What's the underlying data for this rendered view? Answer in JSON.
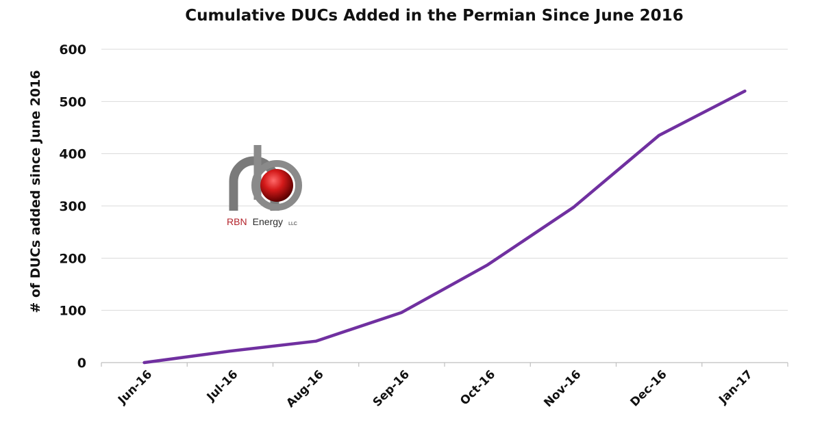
{
  "chart_data": {
    "type": "line",
    "title": "Cumulative DUCs Added in the Permian Since June 2016",
    "xlabel": "",
    "ylabel": "# of DUCs added since June 2016",
    "categories": [
      "Jun-16",
      "Jul-16",
      "Aug-16",
      "Sep-16",
      "Oct-16",
      "Nov-16",
      "Dec-16",
      "Jan-17"
    ],
    "series": [
      {
        "values": [
          0,
          22,
          41,
          96,
          187,
          297,
          435,
          520
        ]
      }
    ],
    "ylim": [
      0,
      600
    ],
    "yticks": [
      0,
      100,
      200,
      300,
      400,
      500,
      600
    ],
    "grid": true,
    "legend": "none",
    "line_color": "#7030a0"
  },
  "logo": {
    "brand": "RBN",
    "name": "Energy",
    "suffix": "LLC",
    "brand_color": "#b3232b"
  }
}
